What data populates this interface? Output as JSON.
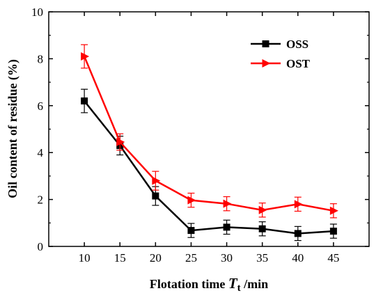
{
  "chart_data": {
    "type": "line",
    "xlabel_prefix": "Flotation time ",
    "xlabel_var": "T",
    "xlabel_sub": "t",
    "xlabel_suffix": " /min",
    "ylabel": "Oil content of residue (%)",
    "x": [
      10,
      15,
      20,
      25,
      30,
      35,
      40,
      45
    ],
    "xticks": [
      10,
      15,
      20,
      25,
      30,
      35,
      40,
      45
    ],
    "xlim": [
      5,
      50
    ],
    "ylim": [
      0,
      10
    ],
    "yticks": [
      0,
      2,
      4,
      6,
      8,
      10
    ],
    "grid": false,
    "legend_position": "top-right",
    "series": [
      {
        "name": "OSS",
        "color": "#000000",
        "marker": "square",
        "values": [
          6.2,
          4.3,
          2.15,
          0.68,
          0.82,
          0.75,
          0.55,
          0.65
        ],
        "errors": [
          0.5,
          0.4,
          0.4,
          0.3,
          0.3,
          0.3,
          0.3,
          0.3
        ]
      },
      {
        "name": "OST",
        "color": "#ff0000",
        "marker": "triangle-right",
        "values": [
          8.1,
          4.45,
          2.8,
          1.97,
          1.82,
          1.55,
          1.8,
          1.52
        ],
        "errors": [
          0.5,
          0.35,
          0.4,
          0.3,
          0.3,
          0.3,
          0.3,
          0.3
        ]
      }
    ]
  }
}
